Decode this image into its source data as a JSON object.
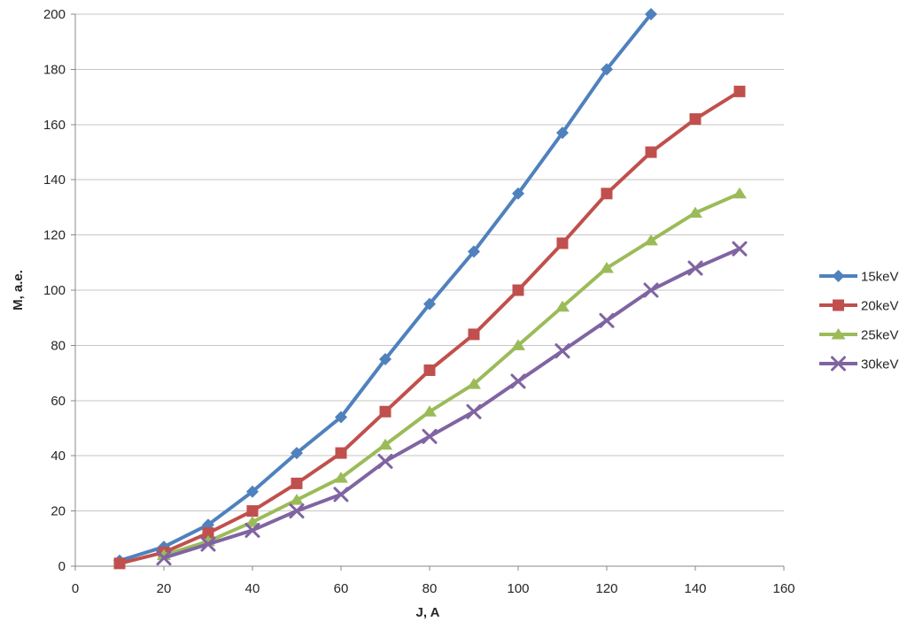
{
  "chart_data": {
    "type": "line",
    "title": "",
    "xlabel": "J, A",
    "ylabel": "M, a.e.",
    "xlim": [
      0,
      160
    ],
    "ylim": [
      0,
      200
    ],
    "x_ticks": [
      0,
      20,
      40,
      60,
      80,
      100,
      120,
      140,
      160
    ],
    "y_ticks": [
      0,
      20,
      40,
      60,
      80,
      100,
      120,
      140,
      160,
      180,
      200
    ],
    "grid": "horizontal-only",
    "legend_position": "right-middle",
    "axis_color": "#898989",
    "gridline_color": "#C6C6C6",
    "text_color": "#262626",
    "series": [
      {
        "name": "15keV",
        "color": "#4F81BD",
        "marker": "diamond",
        "x": [
          10,
          20,
          30,
          40,
          50,
          60,
          70,
          80,
          90,
          100,
          110,
          120,
          130
        ],
        "y": [
          2,
          7,
          15,
          27,
          41,
          54,
          75,
          95,
          114,
          135,
          157,
          180,
          200
        ]
      },
      {
        "name": "20keV",
        "color": "#C0504D",
        "marker": "square",
        "x": [
          10,
          20,
          30,
          40,
          50,
          60,
          70,
          80,
          90,
          100,
          110,
          120,
          130,
          140,
          150
        ],
        "y": [
          1,
          5,
          12,
          20,
          30,
          41,
          56,
          71,
          84,
          100,
          117,
          135,
          150,
          162,
          172
        ]
      },
      {
        "name": "25keV",
        "color": "#9BBB59",
        "marker": "triangle",
        "x": [
          20,
          30,
          40,
          50,
          60,
          70,
          80,
          90,
          100,
          110,
          120,
          130,
          140,
          150
        ],
        "y": [
          4,
          9,
          16,
          24,
          32,
          44,
          56,
          66,
          80,
          94,
          108,
          118,
          128,
          135
        ]
      },
      {
        "name": "30keV",
        "color": "#8064A2",
        "marker": "x",
        "x": [
          20,
          30,
          40,
          50,
          60,
          70,
          80,
          90,
          100,
          110,
          120,
          130,
          140,
          150
        ],
        "y": [
          3,
          8,
          13,
          20,
          26,
          38,
          47,
          56,
          67,
          78,
          89,
          100,
          108,
          115
        ]
      }
    ]
  }
}
